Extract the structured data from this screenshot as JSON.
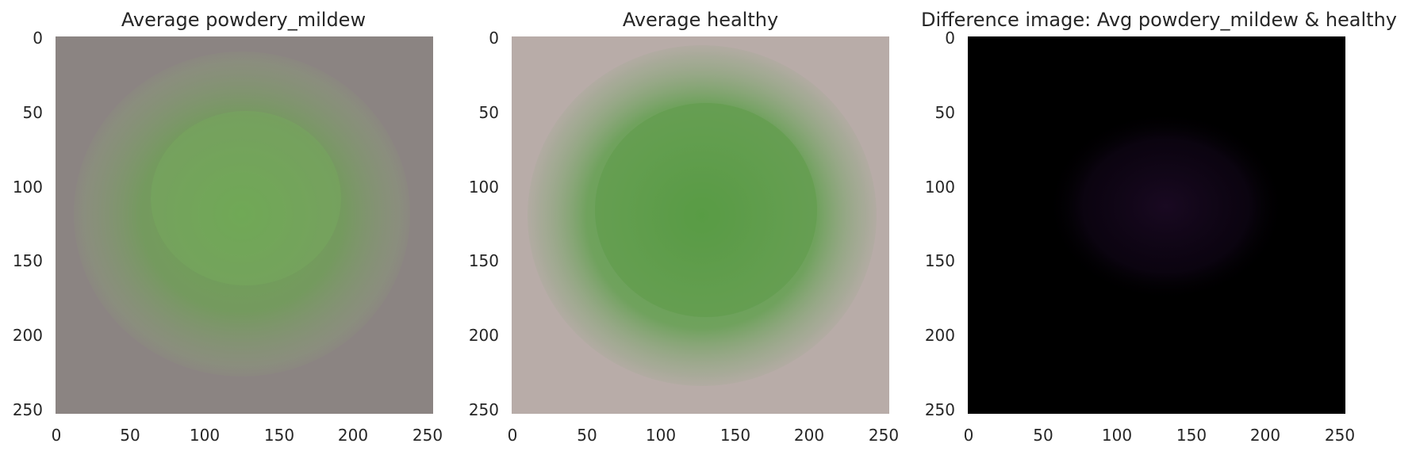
{
  "panels": [
    {
      "title": "Average powdery_mildew",
      "x_ticks": [
        "0",
        "50",
        "100",
        "150",
        "200",
        "250"
      ],
      "y_ticks": [
        "0",
        "50",
        "100",
        "150",
        "200",
        "250"
      ],
      "colors": {
        "background": "#8b8482",
        "leaf_center": "#6aa84f",
        "leaf_edge": "#8a9a78"
      }
    },
    {
      "title": "Average healthy",
      "x_ticks": [
        "0",
        "50",
        "100",
        "150",
        "200",
        "250"
      ],
      "y_ticks": [
        "0",
        "50",
        "100",
        "150",
        "200",
        "250"
      ],
      "colors": {
        "background": "#b8aca8",
        "leaf_center": "#5a9e48",
        "leaf_edge": "#93a885"
      }
    },
    {
      "title": "Difference image: Avg powdery_mildew & healthy",
      "x_ticks": [
        "0",
        "50",
        "100",
        "150",
        "200",
        "250"
      ],
      "y_ticks": [
        "0",
        "50",
        "100",
        "150",
        "200",
        "250"
      ],
      "colors": {
        "background": "#000000",
        "leaf_center": "#1a0a22",
        "leaf_edge": "#0a030c"
      }
    }
  ]
}
